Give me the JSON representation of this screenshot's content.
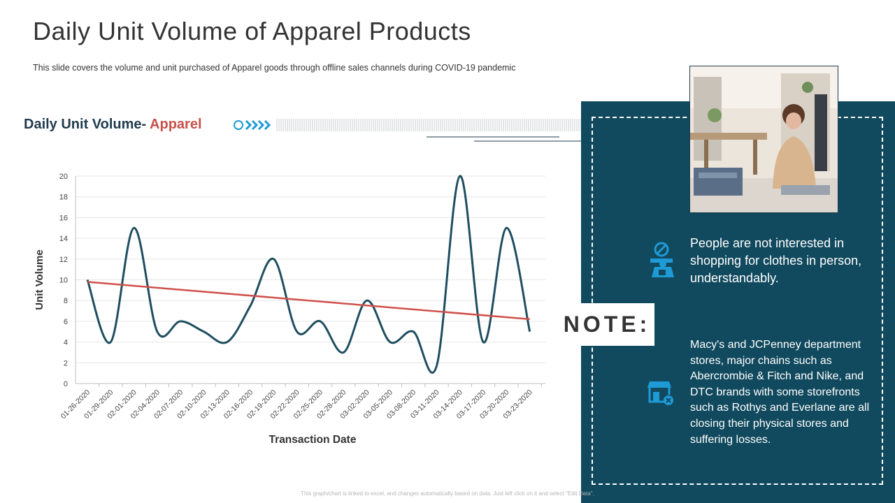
{
  "slide": {
    "title": "Daily Unit Volume of Apparel Products",
    "subtitle": "This slide covers the volume and unit purchased of Apparel goods through offline sales channels during COVID-19 pandemic",
    "chart_heading_main": "Daily Unit Volume- ",
    "chart_heading_accent": "Apparel",
    "footer": "This graph/chart is linked to excel, and changes automatically based on data. Just left click on it and select \"Edit Data\"."
  },
  "note": {
    "label": "NOTE:",
    "points": [
      {
        "icon": "no-shopping-person-icon",
        "text": "People are not interested in shopping for clothes in person, understandably."
      },
      {
        "icon": "closed-store-icon",
        "text": "Macy's and JCPenney department stores, major chains such as Abercrombie & Fitch and Nike, and DTC brands with some storefronts such as Rothys and Everlane are all closing their physical stores and suffering losses."
      }
    ]
  },
  "colors": {
    "line": "#1f4e5f",
    "trend": "#d0504a",
    "panel": "#114a5e",
    "accent": "#c8504a",
    "icon": "#1e9ad6"
  },
  "chart_data": {
    "type": "line",
    "xlabel": "Transaction Date",
    "ylabel": "Unit Volume",
    "ylim": [
      0,
      20
    ],
    "yticks": [
      0,
      2,
      4,
      6,
      8,
      10,
      12,
      14,
      16,
      18,
      20
    ],
    "grid": true,
    "categories": [
      "01-26-2020",
      "01-29-2020",
      "02-01-2020",
      "02-04-2020",
      "02-07-2020",
      "02-10-2020",
      "02-13-2020",
      "02-16-2020",
      "02-19-2020",
      "02-22-2020",
      "02-25-2020",
      "02-28-2020",
      "03-02-2020",
      "03-05-2020",
      "03-08-2020",
      "03-11-2020",
      "03-14-2020",
      "03-17-2020",
      "03-20-2020",
      "03-23-2020"
    ],
    "series": [
      {
        "values": [
          10,
          4,
          15,
          5,
          6,
          5,
          4,
          7.5,
          12,
          5,
          6,
          3,
          8,
          4,
          5,
          1.7,
          20,
          4,
          15,
          5
        ],
        "smooth": true
      },
      {
        "type": "trendline",
        "values_start_end": [
          9.8,
          6.2
        ]
      }
    ]
  }
}
